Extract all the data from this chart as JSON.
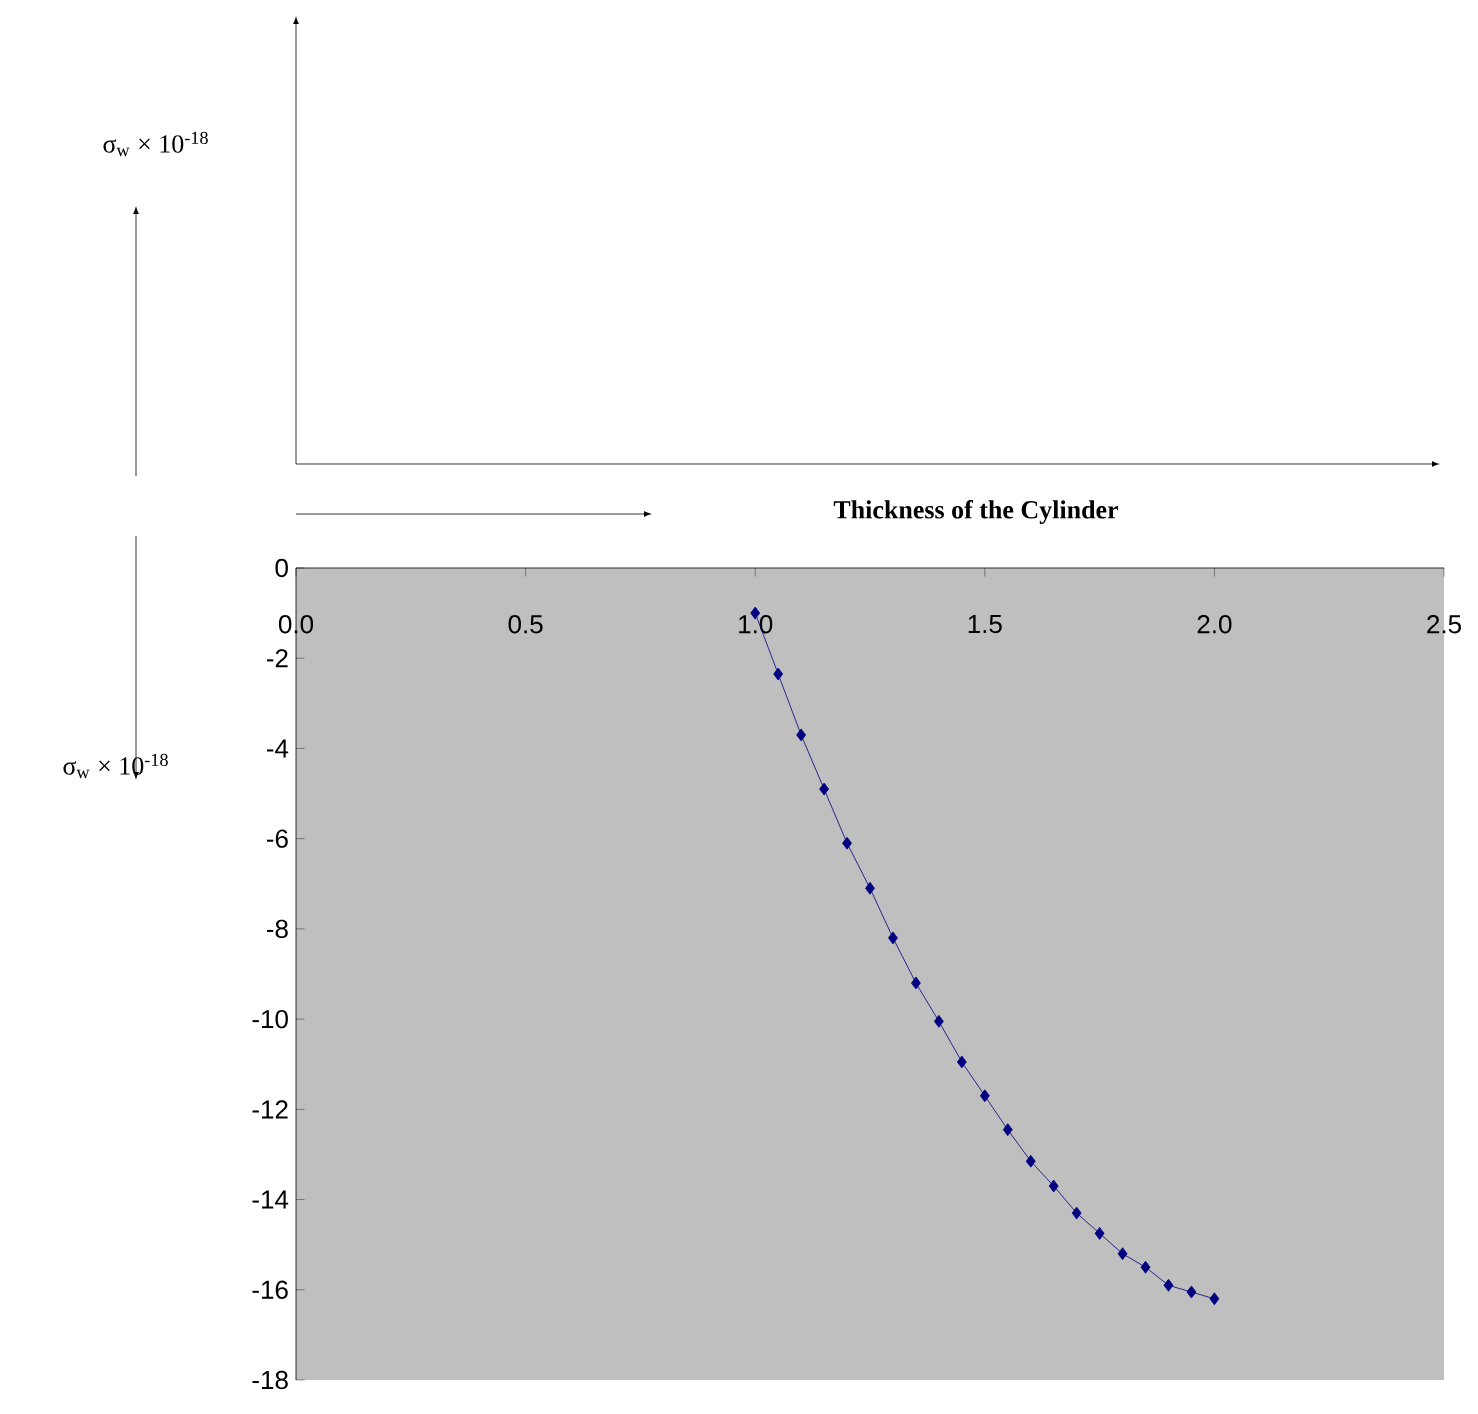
{
  "chart_data": {
    "type": "line",
    "xlabel": "Thickness of the Cylinder",
    "ylabel": "σ$_{w}$ × 10$^{-18}$",
    "annotations": [
      "σ$_{w}$ × 10$^{-18}$"
    ],
    "x": [
      1.0,
      1.05,
      1.1,
      1.15,
      1.2,
      1.25,
      1.3,
      1.35,
      1.4,
      1.45,
      1.5,
      1.55,
      1.6,
      1.65,
      1.7,
      1.75,
      1.8,
      1.85,
      1.9,
      1.95,
      2.0
    ],
    "series": [
      {
        "color": "#000080",
        "values": [
          -1.0,
          -2.35,
          -3.7,
          -4.9,
          -6.1,
          -7.1,
          -8.2,
          -9.2,
          -10.05,
          -10.95,
          -11.7,
          -12.45,
          -13.15,
          -13.7,
          -14.3,
          -14.75,
          -15.2,
          -15.5,
          -15.9,
          -16.05,
          -16.2
        ]
      }
    ],
    "xlim": [
      0,
      2.5
    ],
    "ylim": [
      -18,
      0
    ],
    "xticks": [
      {
        "value": 0,
        "label": "0.0"
      },
      0.5,
      {
        "value": 1,
        "label": "1.0"
      },
      1.5,
      {
        "value": 2,
        "label": "2.0"
      },
      2.5
    ],
    "yticks": [
      -18,
      -16,
      -14,
      -12,
      -10,
      -8,
      -6,
      -4,
      -2,
      0
    ],
    "marker": "diamond",
    "line_style": "solid"
  }
}
